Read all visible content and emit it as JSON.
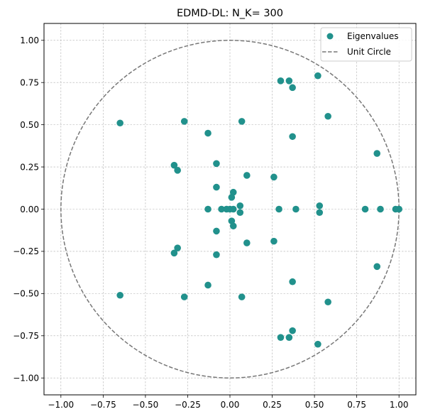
{
  "chart_data": {
    "type": "scatter",
    "title": "EDMD-DL: N_K= 300",
    "xlabel": "",
    "ylabel": "",
    "xlim": [
      -1.1,
      1.1
    ],
    "ylim": [
      -1.1,
      1.1
    ],
    "xticks": [
      -1.0,
      -0.75,
      -0.5,
      -0.25,
      0.0,
      0.25,
      0.5,
      0.75,
      1.0
    ],
    "yticks": [
      -1.0,
      -0.75,
      -0.5,
      -0.25,
      0.0,
      0.25,
      0.5,
      0.75,
      1.0
    ],
    "xtick_labels": [
      "−1.00",
      "−0.75",
      "−0.50",
      "−0.25",
      "0.00",
      "0.25",
      "0.50",
      "0.75",
      "1.00"
    ],
    "ytick_labels": [
      "−1.00",
      "−0.75",
      "−0.50",
      "−0.25",
      "0.00",
      "0.25",
      "0.50",
      "0.75",
      "1.00"
    ],
    "grid": true,
    "legend_position": "top-right",
    "series": [
      {
        "name": "Eigenvalues",
        "kind": "scatter",
        "color": "#21918c",
        "points": [
          [
            0.52,
            0.79
          ],
          [
            0.3,
            0.76
          ],
          [
            0.35,
            0.76
          ],
          [
            0.37,
            0.72
          ],
          [
            0.58,
            0.55
          ],
          [
            0.87,
            0.33
          ],
          [
            -0.65,
            0.51
          ],
          [
            -0.27,
            0.52
          ],
          [
            0.07,
            0.52
          ],
          [
            -0.13,
            0.45
          ],
          [
            0.37,
            0.43
          ],
          [
            -0.33,
            0.26
          ],
          [
            -0.31,
            0.23
          ],
          [
            -0.08,
            0.27
          ],
          [
            0.1,
            0.2
          ],
          [
            0.26,
            0.19
          ],
          [
            -0.08,
            0.13
          ],
          [
            0.02,
            0.1
          ],
          [
            0.01,
            0.07
          ],
          [
            0.06,
            0.02
          ],
          [
            0.53,
            0.02
          ],
          [
            -0.13,
            0.0
          ],
          [
            -0.05,
            0.0
          ],
          [
            -0.02,
            0.0
          ],
          [
            0.0,
            0.0
          ],
          [
            0.02,
            0.0
          ],
          [
            0.29,
            0.0
          ],
          [
            0.39,
            0.0
          ],
          [
            0.8,
            0.0
          ],
          [
            0.89,
            0.0
          ],
          [
            0.98,
            0.0
          ],
          [
            1.0,
            0.0
          ],
          [
            0.53,
            -0.02
          ],
          [
            0.06,
            -0.02
          ],
          [
            0.01,
            -0.07
          ],
          [
            0.02,
            -0.1
          ],
          [
            -0.08,
            -0.13
          ],
          [
            0.1,
            -0.2
          ],
          [
            0.26,
            -0.19
          ],
          [
            -0.08,
            -0.27
          ],
          [
            -0.33,
            -0.26
          ],
          [
            -0.31,
            -0.23
          ],
          [
            -0.65,
            -0.51
          ],
          [
            -0.27,
            -0.52
          ],
          [
            0.07,
            -0.52
          ],
          [
            -0.13,
            -0.45
          ],
          [
            0.37,
            -0.43
          ],
          [
            0.58,
            -0.55
          ],
          [
            0.87,
            -0.34
          ],
          [
            0.3,
            -0.76
          ],
          [
            0.35,
            -0.76
          ],
          [
            0.37,
            -0.72
          ],
          [
            0.52,
            -0.8
          ]
        ]
      },
      {
        "name": "Unit Circle",
        "kind": "circle",
        "color": "#777777",
        "center": [
          0,
          0
        ],
        "radius": 1.0,
        "linestyle": "dashed"
      }
    ]
  }
}
